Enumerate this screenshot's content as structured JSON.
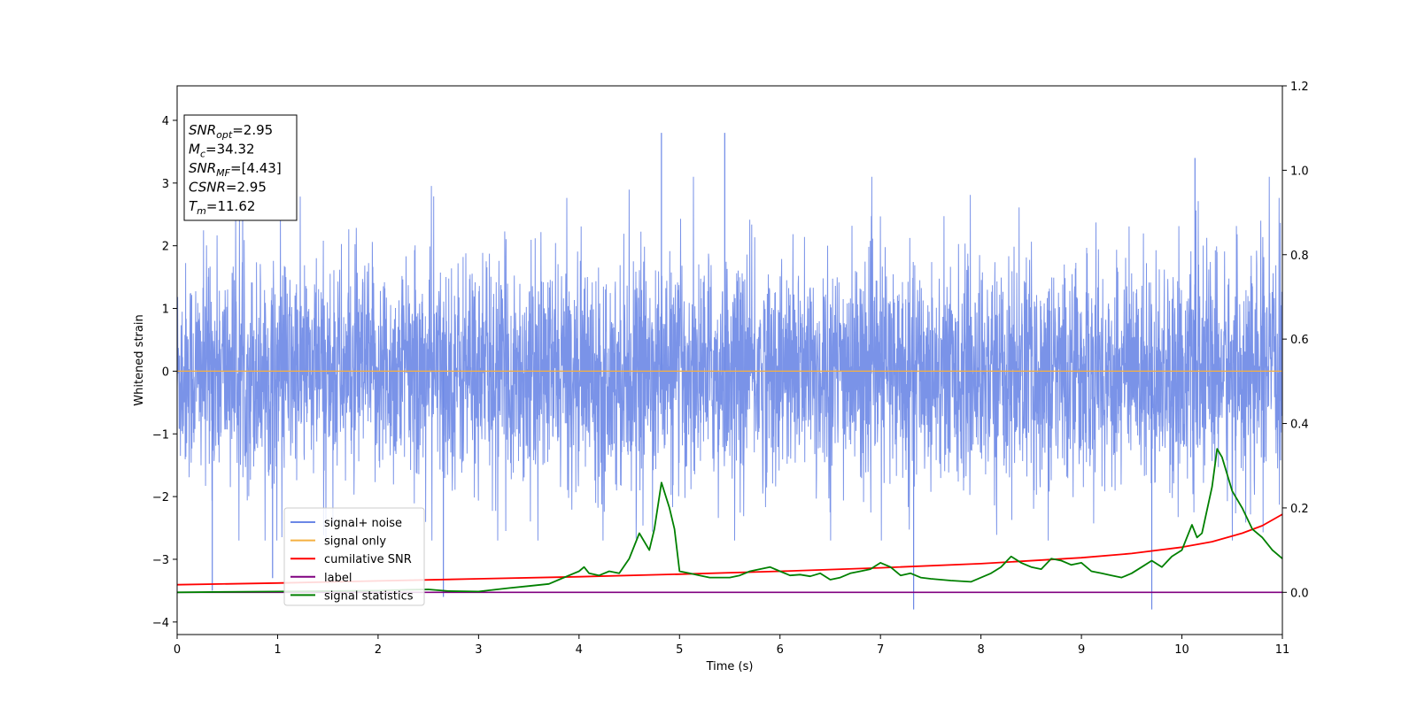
{
  "chart_data": {
    "type": "line",
    "xlabel": "Time (s)",
    "ylabel": "Whitened strain",
    "xlim": [
      0,
      11
    ],
    "ylim_left": [
      -4.2,
      4.55
    ],
    "ylim_right": [
      -0.1,
      1.2
    ],
    "x_ticks": [
      0,
      1,
      2,
      3,
      4,
      5,
      6,
      7,
      8,
      9,
      10,
      11
    ],
    "y_ticks_left": [
      -4,
      -3,
      -2,
      -1,
      0,
      1,
      2,
      3,
      4
    ],
    "y_ticks_right": [
      0.0,
      0.2,
      0.4,
      0.6,
      0.8,
      1.0,
      1.2
    ],
    "grid": false,
    "legend_position": "lower-left",
    "colors": {
      "signal_noise": "#6b87e6",
      "signal_only": "#f5b041",
      "cumulative_snr": "#ff0000",
      "label": "#800080",
      "signal_statistics": "#008000"
    },
    "legend": [
      {
        "key": "signal_noise",
        "label": "signal+ noise"
      },
      {
        "key": "signal_only",
        "label": "signal only"
      },
      {
        "key": "cumulative_snr",
        "label": "cumilative SNR"
      },
      {
        "key": "label",
        "label": "label"
      },
      {
        "key": "signal_statistics",
        "label": "signal statistics"
      }
    ],
    "annotation_lines": [
      {
        "base": "SNR",
        "sub": "opt",
        "rest": "=2.95"
      },
      {
        "base": "M",
        "sub": "c",
        "rest": "=34.32"
      },
      {
        "base": "SNR",
        "sub": "MF",
        "rest": "=[4.43]"
      },
      {
        "base": "CSNR",
        "sub": "",
        "rest": "=2.95"
      },
      {
        "base": "T",
        "sub": "m",
        "rest": "=11.62"
      }
    ],
    "series": [
      {
        "key": "signal_noise",
        "axis": "left",
        "description_values": "dense noise, mostly within [-2, 2.5], extremes ~3.8 and ~-3.8",
        "amplitude_envelope": [
          -2.2,
          2.4
        ],
        "peaks": [
          [
            4.82,
            3.8
          ],
          [
            5.45,
            3.8
          ],
          [
            10.13,
            3.4
          ],
          [
            7.33,
            -3.8
          ],
          [
            9.7,
            -3.8
          ],
          [
            0.35,
            -3.5
          ],
          [
            2.65,
            -3.6
          ],
          [
            0.95,
            -3.3
          ]
        ]
      },
      {
        "key": "signal_only",
        "axis": "left",
        "x": [
          0,
          11
        ],
        "y": [
          0,
          0
        ]
      },
      {
        "key": "cumulative_snr",
        "axis": "right",
        "x": [
          0,
          1,
          2,
          3,
          4,
          5,
          6,
          7,
          8,
          9,
          9.5,
          10,
          10.3,
          10.6,
          10.8,
          11
        ],
        "y": [
          0.018,
          0.022,
          0.027,
          0.032,
          0.037,
          0.043,
          0.05,
          0.058,
          0.068,
          0.082,
          0.092,
          0.107,
          0.12,
          0.14,
          0.158,
          0.185
        ]
      },
      {
        "key": "label",
        "axis": "right",
        "x": [
          0,
          11
        ],
        "y": [
          0,
          0
        ]
      },
      {
        "key": "signal_statistics",
        "axis": "right",
        "x": [
          0,
          0.5,
          1,
          1.5,
          2,
          2.3,
          2.5,
          2.7,
          3,
          3.3,
          3.5,
          3.7,
          3.8,
          3.9,
          4,
          4.05,
          4.1,
          4.2,
          4.3,
          4.4,
          4.5,
          4.6,
          4.7,
          4.75,
          4.82,
          4.9,
          4.95,
          5,
          5.1,
          5.2,
          5.3,
          5.5,
          5.6,
          5.7,
          5.8,
          5.9,
          6,
          6.1,
          6.2,
          6.3,
          6.4,
          6.5,
          6.6,
          6.7,
          6.8,
          6.9,
          7,
          7.1,
          7.2,
          7.3,
          7.4,
          7.5,
          7.7,
          7.9,
          8.1,
          8.2,
          8.3,
          8.4,
          8.5,
          8.6,
          8.7,
          8.8,
          8.9,
          9,
          9.1,
          9.2,
          9.3,
          9.4,
          9.5,
          9.6,
          9.7,
          9.8,
          9.9,
          10,
          10.1,
          10.15,
          10.2,
          10.3,
          10.35,
          10.4,
          10.5,
          10.6,
          10.7,
          10.8,
          10.9,
          11
        ],
        "y": [
          0.0,
          0.001,
          0.002,
          0.003,
          0.004,
          0.006,
          0.007,
          0.003,
          0.002,
          0.01,
          0.015,
          0.02,
          0.03,
          0.04,
          0.05,
          0.06,
          0.045,
          0.04,
          0.05,
          0.045,
          0.08,
          0.14,
          0.1,
          0.15,
          0.26,
          0.2,
          0.15,
          0.05,
          0.045,
          0.04,
          0.035,
          0.035,
          0.04,
          0.05,
          0.055,
          0.06,
          0.05,
          0.04,
          0.042,
          0.038,
          0.045,
          0.03,
          0.035,
          0.045,
          0.05,
          0.055,
          0.07,
          0.06,
          0.04,
          0.045,
          0.035,
          0.032,
          0.028,
          0.025,
          0.045,
          0.06,
          0.085,
          0.07,
          0.06,
          0.055,
          0.08,
          0.075,
          0.065,
          0.07,
          0.05,
          0.045,
          0.04,
          0.035,
          0.045,
          0.06,
          0.075,
          0.06,
          0.085,
          0.1,
          0.16,
          0.13,
          0.14,
          0.25,
          0.34,
          0.32,
          0.24,
          0.2,
          0.15,
          0.13,
          0.1,
          0.08
        ]
      }
    ]
  }
}
